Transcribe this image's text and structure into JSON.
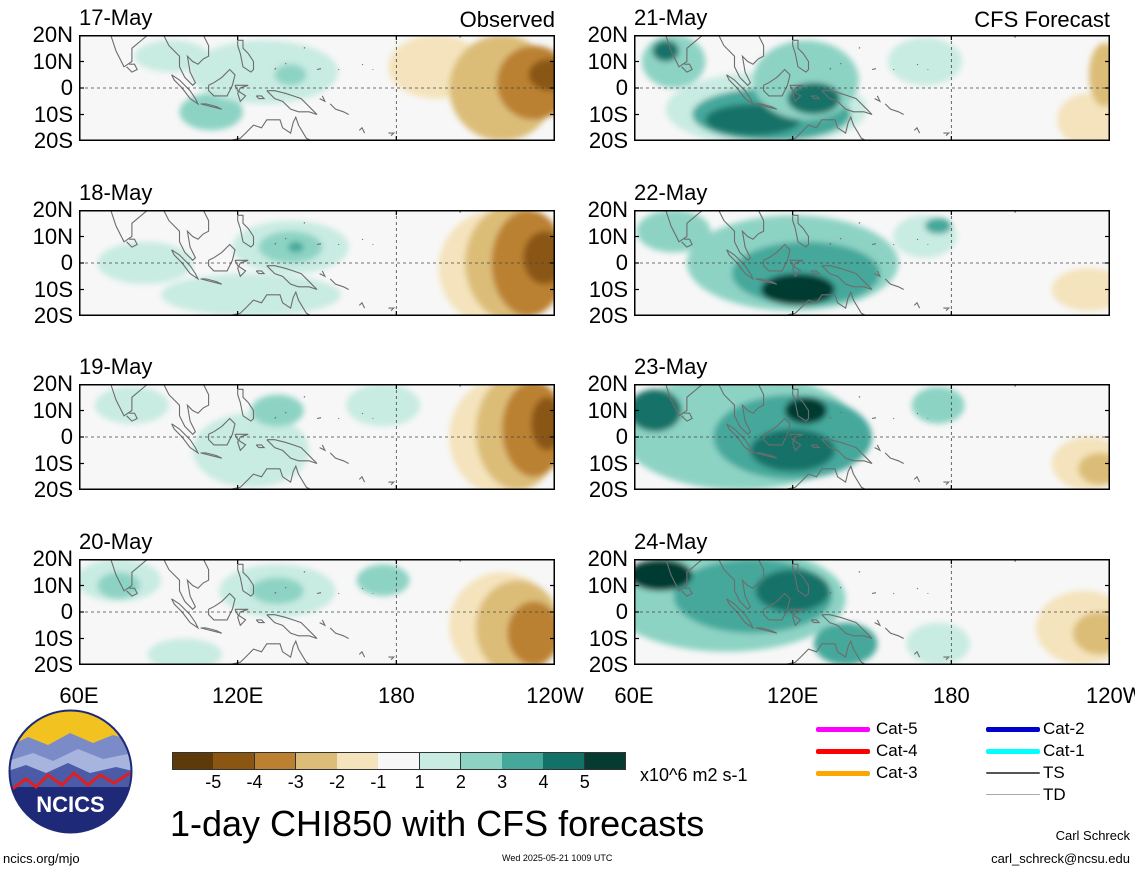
{
  "chart_data": {
    "type": "heatmap",
    "title": "1-day CHI850 with CFS forecasts",
    "units": "x10^6 m2 s-1",
    "columns": [
      {
        "heading": "Observed",
        "dates": [
          "17-May",
          "18-May",
          "19-May",
          "20-May"
        ]
      },
      {
        "heading": "CFS Forecast",
        "dates": [
          "21-May",
          "22-May",
          "23-May",
          "24-May"
        ]
      }
    ],
    "lat_ticks": [
      "20N",
      "10N",
      "0",
      "10S",
      "20S"
    ],
    "lon_ticks": [
      "60E",
      "120E",
      "180",
      "120W"
    ],
    "lon_ticks_right": [
      "60E",
      "120E",
      "180",
      "120W"
    ],
    "colorbar": {
      "ticks": [
        "-5",
        "-4",
        "-3",
        "-2",
        "-1",
        "1",
        "2",
        "3",
        "4",
        "5"
      ],
      "colors": [
        "#5c3a09",
        "#8a5612",
        "#bb8130",
        "#dcbd78",
        "#f4e3bc",
        "#f7f7f7",
        "#c8ebe2",
        "#8dd3c4",
        "#45a89b",
        "#137267",
        "#063b33"
      ]
    },
    "panels": [
      {
        "date": "17-May",
        "blobs": [
          {
            "lon": 95,
            "lat": 12,
            "rx": 14,
            "ry": 6,
            "level": 1
          },
          {
            "lon": 110,
            "lat": -9,
            "rx": 12,
            "ry": 7,
            "level": 2
          },
          {
            "lon": 130,
            "lat": 6,
            "rx": 28,
            "ry": 12,
            "level": 1
          },
          {
            "lon": 140,
            "lat": 5,
            "rx": 6,
            "ry": 4,
            "level": 2
          },
          {
            "lon": 195,
            "lat": 8,
            "rx": 18,
            "ry": 12,
            "level": -1
          },
          {
            "lon": 220,
            "lat": 0,
            "rx": 20,
            "ry": 20,
            "level": -2
          },
          {
            "lon": 232,
            "lat": 2,
            "rx": 14,
            "ry": 14,
            "level": -3
          },
          {
            "lon": 238,
            "lat": 5,
            "rx": 8,
            "ry": 6,
            "level": -4
          }
        ]
      },
      {
        "date": "18-May",
        "blobs": [
          {
            "lon": 85,
            "lat": 0,
            "rx": 18,
            "ry": 8,
            "level": 1
          },
          {
            "lon": 140,
            "lat": 6,
            "rx": 22,
            "ry": 10,
            "level": 1
          },
          {
            "lon": 140,
            "lat": 6,
            "rx": 12,
            "ry": 6,
            "level": 2
          },
          {
            "lon": 142,
            "lat": 6,
            "rx": 3,
            "ry": 2,
            "level": 3
          },
          {
            "lon": 125,
            "lat": -12,
            "rx": 34,
            "ry": 8,
            "level": 1
          },
          {
            "lon": 218,
            "lat": -2,
            "rx": 22,
            "ry": 22,
            "level": -1
          },
          {
            "lon": 224,
            "lat": 0,
            "rx": 18,
            "ry": 22,
            "level": -2
          },
          {
            "lon": 230,
            "lat": 0,
            "rx": 14,
            "ry": 20,
            "level": -3
          },
          {
            "lon": 236,
            "lat": 2,
            "rx": 8,
            "ry": 10,
            "level": -4
          }
        ]
      },
      {
        "date": "19-May",
        "blobs": [
          {
            "lon": 80,
            "lat": 12,
            "rx": 14,
            "ry": 7,
            "level": 1
          },
          {
            "lon": 125,
            "lat": -5,
            "rx": 22,
            "ry": 14,
            "level": 1
          },
          {
            "lon": 135,
            "lat": 10,
            "rx": 10,
            "ry": 6,
            "level": 2
          },
          {
            "lon": 175,
            "lat": 12,
            "rx": 14,
            "ry": 8,
            "level": 1
          },
          {
            "lon": 220,
            "lat": 0,
            "rx": 20,
            "ry": 22,
            "level": -1
          },
          {
            "lon": 226,
            "lat": 2,
            "rx": 16,
            "ry": 22,
            "level": -2
          },
          {
            "lon": 232,
            "lat": 3,
            "rx": 12,
            "ry": 18,
            "level": -3
          },
          {
            "lon": 237,
            "lat": 5,
            "rx": 6,
            "ry": 10,
            "level": -4
          }
        ]
      },
      {
        "date": "20-May",
        "blobs": [
          {
            "lon": 75,
            "lat": 12,
            "rx": 16,
            "ry": 8,
            "level": 1
          },
          {
            "lon": 75,
            "lat": 10,
            "rx": 8,
            "ry": 5,
            "level": 2
          },
          {
            "lon": 135,
            "lat": 8,
            "rx": 22,
            "ry": 10,
            "level": 1
          },
          {
            "lon": 135,
            "lat": 8,
            "rx": 10,
            "ry": 5,
            "level": 2
          },
          {
            "lon": 175,
            "lat": 12,
            "rx": 10,
            "ry": 6,
            "level": 2
          },
          {
            "lon": 100,
            "lat": -16,
            "rx": 14,
            "ry": 6,
            "level": 1
          },
          {
            "lon": 220,
            "lat": -5,
            "rx": 20,
            "ry": 20,
            "level": -1
          },
          {
            "lon": 226,
            "lat": -6,
            "rx": 16,
            "ry": 18,
            "level": -2
          },
          {
            "lon": 232,
            "lat": -8,
            "rx": 10,
            "ry": 12,
            "level": -3
          }
        ]
      },
      {
        "date": "21-May",
        "blobs": [
          {
            "lon": 75,
            "lat": 10,
            "rx": 12,
            "ry": 10,
            "level": 2
          },
          {
            "lon": 72,
            "lat": 14,
            "rx": 5,
            "ry": 4,
            "level": 4
          },
          {
            "lon": 110,
            "lat": -8,
            "rx": 38,
            "ry": 14,
            "level": 1
          },
          {
            "lon": 112,
            "lat": -10,
            "rx": 30,
            "ry": 10,
            "level": 3
          },
          {
            "lon": 105,
            "lat": -12,
            "rx": 18,
            "ry": 6,
            "level": 4
          },
          {
            "lon": 125,
            "lat": 3,
            "rx": 20,
            "ry": 15,
            "level": 2
          },
          {
            "lon": 128,
            "lat": -4,
            "rx": 10,
            "ry": 6,
            "level": 4
          },
          {
            "lon": 170,
            "lat": 10,
            "rx": 14,
            "ry": 9,
            "level": 1
          },
          {
            "lon": 232,
            "lat": -12,
            "rx": 12,
            "ry": 10,
            "level": -1
          },
          {
            "lon": 238,
            "lat": 5,
            "rx": 6,
            "ry": 12,
            "level": -2
          }
        ]
      },
      {
        "date": "22-May",
        "blobs": [
          {
            "lon": 75,
            "lat": 12,
            "rx": 14,
            "ry": 8,
            "level": 2
          },
          {
            "lon": 120,
            "lat": 0,
            "rx": 40,
            "ry": 18,
            "level": 2
          },
          {
            "lon": 125,
            "lat": -4,
            "rx": 28,
            "ry": 12,
            "level": 3
          },
          {
            "lon": 122,
            "lat": -10,
            "rx": 14,
            "ry": 6,
            "level": 5
          },
          {
            "lon": 170,
            "lat": 10,
            "rx": 12,
            "ry": 8,
            "level": 1
          },
          {
            "lon": 175,
            "lat": 14,
            "rx": 5,
            "ry": 3,
            "level": 3
          },
          {
            "lon": 232,
            "lat": -10,
            "rx": 14,
            "ry": 8,
            "level": -1
          }
        ]
      },
      {
        "date": "23-May",
        "blobs": [
          {
            "lon": 100,
            "lat": 2,
            "rx": 45,
            "ry": 22,
            "level": 2
          },
          {
            "lon": 120,
            "lat": 0,
            "rx": 30,
            "ry": 16,
            "level": 3
          },
          {
            "lon": 120,
            "lat": -5,
            "rx": 16,
            "ry": 8,
            "level": 4
          },
          {
            "lon": 68,
            "lat": 10,
            "rx": 10,
            "ry": 8,
            "level": 4
          },
          {
            "lon": 125,
            "lat": 10,
            "rx": 8,
            "ry": 5,
            "level": 5
          },
          {
            "lon": 175,
            "lat": 12,
            "rx": 10,
            "ry": 7,
            "level": 2
          },
          {
            "lon": 232,
            "lat": -10,
            "rx": 14,
            "ry": 10,
            "level": -1
          },
          {
            "lon": 236,
            "lat": -12,
            "rx": 8,
            "ry": 6,
            "level": -2
          }
        ]
      },
      {
        "date": "24-May",
        "blobs": [
          {
            "lon": 95,
            "lat": 5,
            "rx": 45,
            "ry": 20,
            "level": 2
          },
          {
            "lon": 105,
            "lat": 6,
            "rx": 30,
            "ry": 14,
            "level": 3
          },
          {
            "lon": 70,
            "lat": 14,
            "rx": 12,
            "ry": 6,
            "level": 5
          },
          {
            "lon": 120,
            "lat": 8,
            "rx": 14,
            "ry": 8,
            "level": 4
          },
          {
            "lon": 140,
            "lat": -12,
            "rx": 12,
            "ry": 8,
            "level": 3
          },
          {
            "lon": 175,
            "lat": -12,
            "rx": 12,
            "ry": 8,
            "level": 1
          },
          {
            "lon": 230,
            "lat": -6,
            "rx": 18,
            "ry": 14,
            "level": -1
          },
          {
            "lon": 236,
            "lat": -8,
            "rx": 10,
            "ry": 8,
            "level": -2
          }
        ]
      }
    ]
  },
  "branding": {
    "logo_text": "NCICS",
    "url": "ncics.org/mjo",
    "timestamp": "Wed 2025-05-21 1009 UTC",
    "author": "Carl Schreck",
    "email": "carl_schreck@ncsu.edu"
  },
  "storm_legend": [
    {
      "label": "Cat-5",
      "color": "#ff00ff"
    },
    {
      "label": "Cat-4",
      "color": "#ff0000"
    },
    {
      "label": "Cat-3",
      "color": "#ffa500"
    },
    {
      "label": "Cat-2",
      "color": "#0000cd"
    },
    {
      "label": "Cat-1",
      "color": "#00ffff"
    },
    {
      "label": "TS",
      "color": "#555555"
    },
    {
      "label": "TD",
      "color": "#aaaaaa"
    }
  ]
}
